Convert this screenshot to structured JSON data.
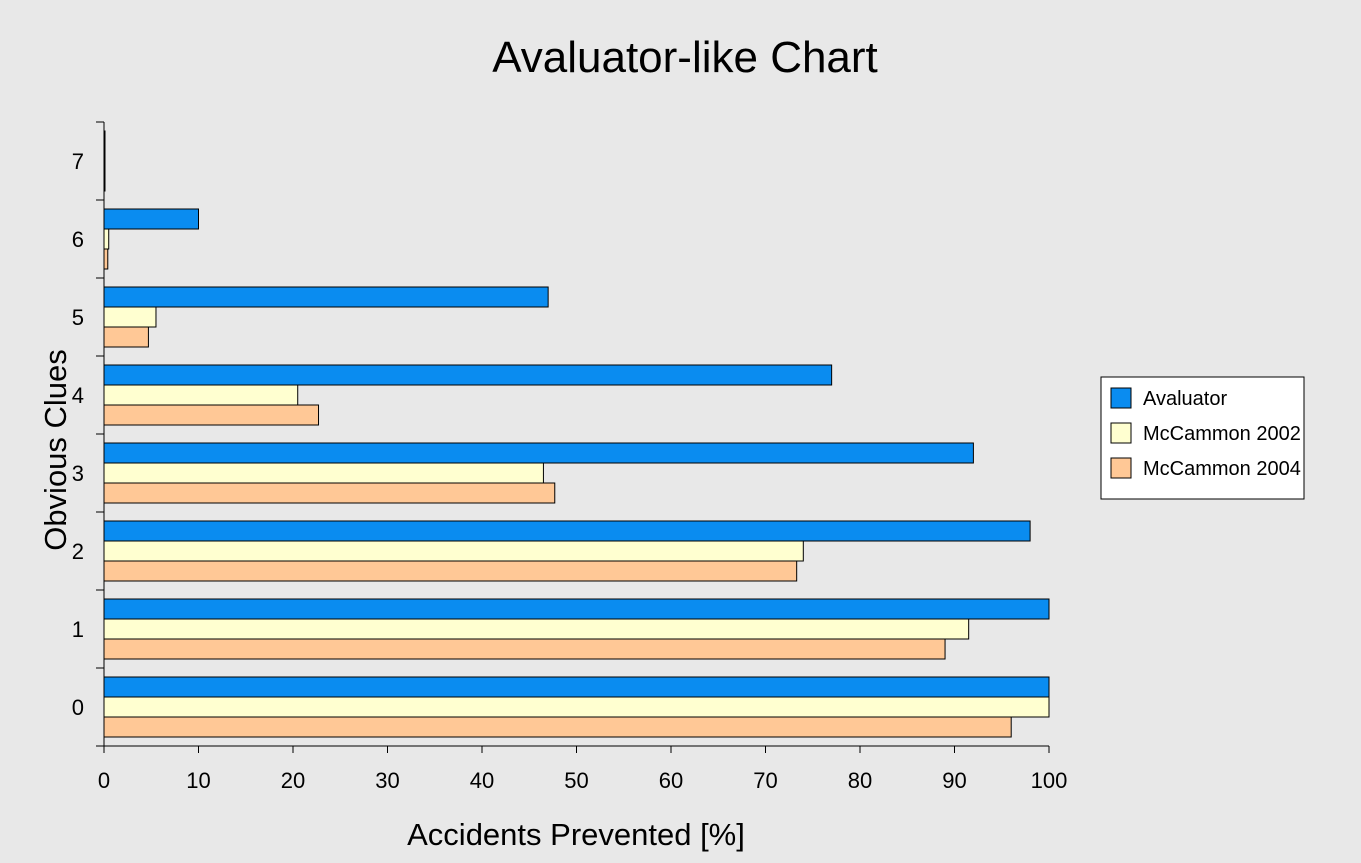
{
  "chart_data": {
    "type": "bar",
    "orientation": "horizontal",
    "title": "Avaluator-like Chart",
    "xlabel": "Accidents Prevented [%]",
    "ylabel": "Obvious Clues",
    "xlim": [
      0,
      100
    ],
    "x_ticks": [
      "0",
      "10",
      "20",
      "30",
      "40",
      "50",
      "60",
      "70",
      "80",
      "90",
      "100"
    ],
    "categories": [
      "0",
      "1",
      "2",
      "3",
      "4",
      "5",
      "6",
      "7"
    ],
    "series": [
      {
        "name": "Avaluator",
        "color": "#0a8cf0",
        "values": [
          100,
          100,
          98,
          92,
          77,
          47,
          10,
          0.1
        ]
      },
      {
        "name": "McCammon 2002",
        "color": "#ffffd0",
        "values": [
          100,
          91.5,
          74,
          46.5,
          20.5,
          5.5,
          0.5,
          0.1
        ]
      },
      {
        "name": "McCammon 2004",
        "color": "#ffc896",
        "values": [
          96,
          89,
          73.3,
          47.7,
          22.7,
          4.7,
          0.4,
          0.1
        ]
      }
    ],
    "legend_position": "right",
    "grid": false
  }
}
